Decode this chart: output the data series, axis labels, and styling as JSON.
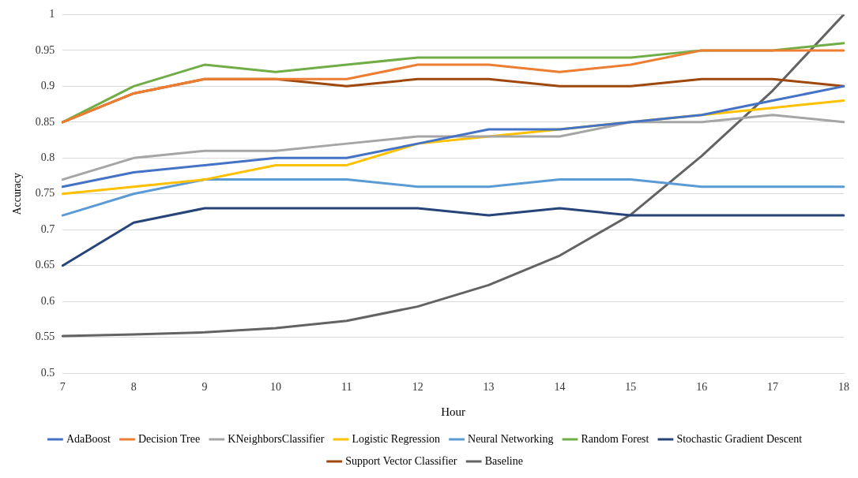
{
  "chart_data": {
    "type": "line",
    "xlabel": "Hour",
    "ylabel": "Accuracy",
    "categories": [
      "7",
      "8",
      "9",
      "10",
      "11",
      "12",
      "13",
      "14",
      "15",
      "16",
      "17",
      "18"
    ],
    "ylim": [
      0.5,
      1
    ],
    "yticks": [
      0.5,
      0.55,
      0.6,
      0.65,
      0.7,
      0.75,
      0.8,
      0.85,
      0.9,
      0.95,
      1
    ],
    "grid": "y",
    "legend": "bottom",
    "marker": "none",
    "line_style": "solid",
    "series": [
      {
        "name": "AdaBoost",
        "color": "#4472c4",
        "values": [
          0.76,
          0.78,
          0.79,
          0.8,
          0.8,
          0.82,
          0.84,
          0.84,
          0.85,
          0.86,
          0.88,
          0.9
        ]
      },
      {
        "name": "Decision Tree",
        "color": "#ed7d31",
        "values": [
          0.85,
          0.89,
          0.91,
          0.91,
          0.91,
          0.93,
          0.93,
          0.92,
          0.93,
          0.95,
          0.95,
          0.95
        ]
      },
      {
        "name": "KNeighborsClassifier",
        "color": "#a5a5a5",
        "values": [
          0.77,
          0.8,
          0.81,
          0.81,
          0.82,
          0.83,
          0.83,
          0.83,
          0.85,
          0.85,
          0.86,
          0.85
        ]
      },
      {
        "name": "Logistic Regression",
        "color": "#ffc000",
        "values": [
          0.75,
          0.76,
          0.77,
          0.79,
          0.79,
          0.82,
          0.83,
          0.84,
          0.85,
          0.86,
          0.87,
          0.88
        ]
      },
      {
        "name": "Neural Networking",
        "color": "#5b9bd5",
        "values": [
          0.72,
          0.75,
          0.77,
          0.77,
          0.77,
          0.76,
          0.76,
          0.77,
          0.77,
          0.76,
          0.76,
          0.76
        ]
      },
      {
        "name": "Random Forest",
        "color": "#70ad47",
        "values": [
          0.85,
          0.9,
          0.93,
          0.92,
          0.93,
          0.94,
          0.94,
          0.94,
          0.94,
          0.95,
          0.95,
          0.96
        ]
      },
      {
        "name": "Stochastic Gradient Descent",
        "color": "#264478",
        "values": [
          0.65,
          0.71,
          0.73,
          0.73,
          0.73,
          0.73,
          0.72,
          0.73,
          0.72,
          0.72,
          0.72,
          0.72
        ]
      },
      {
        "name": "Support Vector Classifier",
        "color": "#9e480e",
        "values": [
          0.85,
          0.89,
          0.91,
          0.91,
          0.9,
          0.91,
          0.91,
          0.9,
          0.9,
          0.91,
          0.91,
          0.9
        ]
      },
      {
        "name": "Baseline",
        "color": "#636363",
        "values": [
          0.552,
          0.554,
          0.557,
          0.563,
          0.573,
          0.593,
          0.623,
          0.664,
          0.721,
          0.803,
          0.894,
          1.0
        ]
      }
    ]
  }
}
